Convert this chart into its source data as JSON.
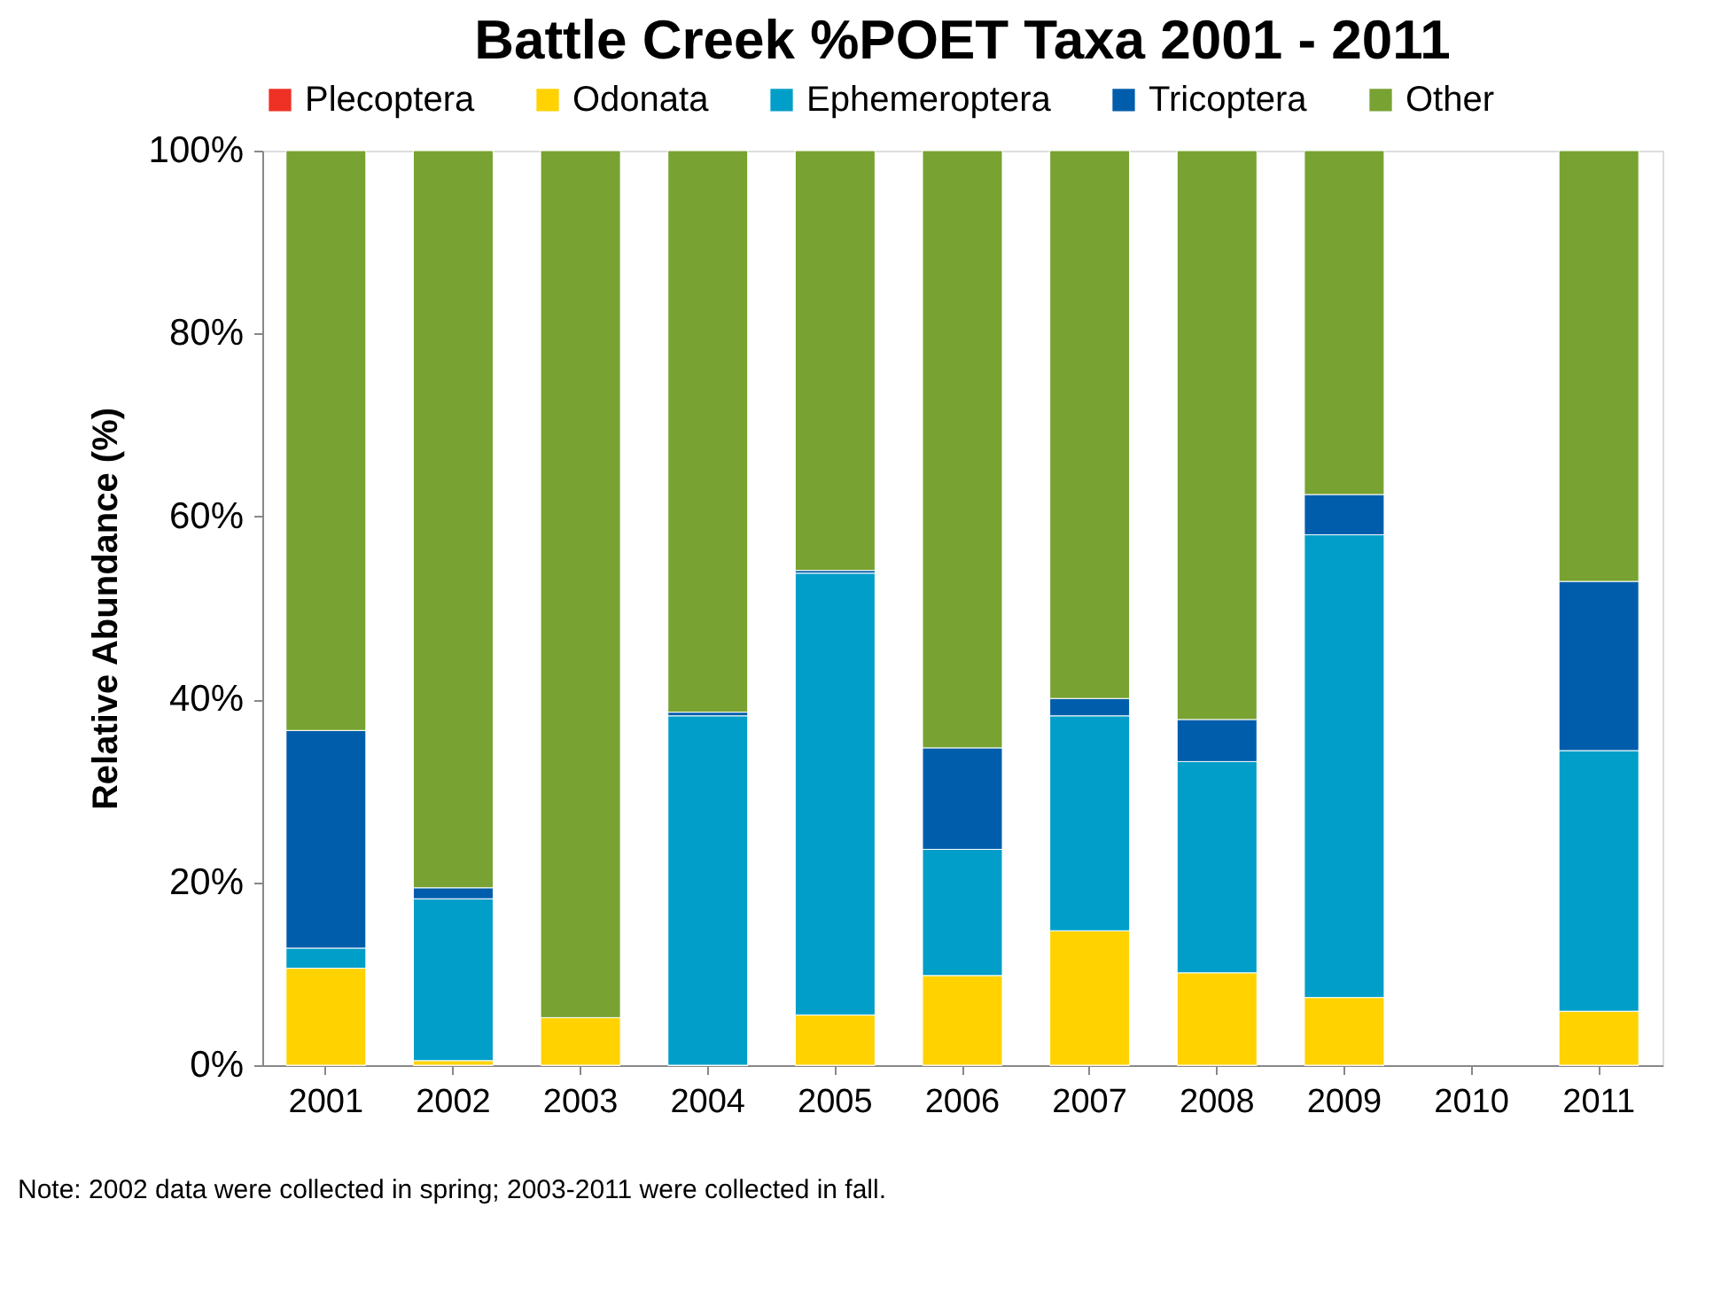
{
  "chart_data": {
    "type": "bar",
    "stacked": true,
    "title": "Battle Creek %POET Taxa 2001 - 2011",
    "ylabel": "Relative Abundance (%)",
    "categories": [
      "2001",
      "2002",
      "2003",
      "2004",
      "2005",
      "2006",
      "2007",
      "2008",
      "2009",
      "2010",
      "2011"
    ],
    "series": [
      {
        "name": "Plecoptera",
        "color": "#ee3124",
        "values": [
          0,
          0,
          0,
          0,
          0,
          0,
          0,
          0,
          0,
          null,
          0
        ]
      },
      {
        "name": "Odonata",
        "color": "#ffd200",
        "values": [
          10.6,
          0.5,
          5.2,
          0,
          5.5,
          9.8,
          14.7,
          10.1,
          7.4,
          null,
          5.9
        ]
      },
      {
        "name": "Ephemeroptera",
        "color": "#009ec8",
        "values": [
          2.2,
          17.7,
          0,
          38.2,
          48.3,
          13.8,
          23.5,
          23.1,
          50.6,
          null,
          28.5
        ]
      },
      {
        "name": "Tricoptera",
        "color": "#005dab",
        "values": [
          23.8,
          1.2,
          0,
          0.4,
          0.3,
          11.1,
          1.9,
          4.6,
          4.4,
          null,
          18.5
        ]
      },
      {
        "name": "Other",
        "color": "#78a232",
        "values": [
          63.4,
          80.6,
          94.8,
          61.4,
          45.9,
          65.3,
          59.9,
          62.2,
          37.6,
          null,
          47.1
        ]
      }
    ],
    "ylim": [
      0,
      100
    ],
    "yticks": [
      {
        "value": 0,
        "label": "0%"
      },
      {
        "value": 20,
        "label": "20%"
      },
      {
        "value": 40,
        "label": "40%"
      },
      {
        "value": 60,
        "label": "60%"
      },
      {
        "value": 80,
        "label": "80%"
      },
      {
        "value": 100,
        "label": "100%"
      }
    ],
    "grid": false,
    "legend": "top",
    "annotations": [
      "Note: 2002 data were collected in spring;  2003-2011 were collected in fall."
    ]
  }
}
